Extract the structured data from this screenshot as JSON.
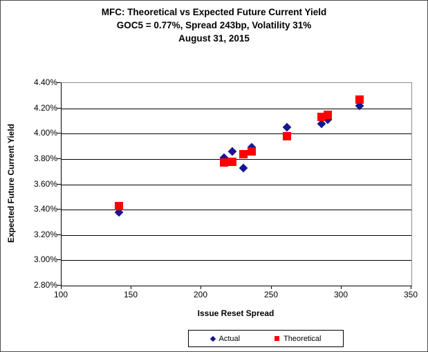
{
  "chart_data": {
    "type": "scatter",
    "title": "MFC: Theoretical vs Expected Future Current Yield",
    "subtitle": "GOC5 = 0.77%, Spread 243bp, Volatility 31%",
    "date_line": "August 31, 2015",
    "xlabel": "Issue Reset Spread",
    "ylabel": "Expected Future Current Yield",
    "xlim": [
      100,
      350
    ],
    "ylim": [
      2.8,
      4.4
    ],
    "x_tick_values": [
      100,
      150,
      200,
      250,
      300,
      350
    ],
    "x_tick_labels": [
      "100",
      "150",
      "200",
      "250",
      "300",
      "350"
    ],
    "y_tick_values": [
      4.4,
      4.2,
      4.0,
      3.8,
      3.6,
      3.4,
      3.2,
      3.0,
      2.8
    ],
    "y_tick_labels": [
      "4.40%",
      "4.20%",
      "4.00%",
      "3.80%",
      "3.60%",
      "3.40%",
      "3.20%",
      "3.00%",
      "2.80%"
    ],
    "grid": true,
    "legend_position": "bottom",
    "series": [
      {
        "name": "Actual",
        "marker": "diamond",
        "color": "#16168e",
        "points": [
          [
            141,
            3.38
          ],
          [
            216,
            3.81
          ],
          [
            222,
            3.86
          ],
          [
            230,
            3.73
          ],
          [
            236,
            3.89
          ],
          [
            261,
            4.05
          ],
          [
            286,
            4.08
          ],
          [
            290,
            4.11
          ],
          [
            313,
            4.22
          ]
        ]
      },
      {
        "name": "Theoretical",
        "marker": "square",
        "color": "#fe0000",
        "points": [
          [
            141,
            3.43
          ],
          [
            216,
            3.77
          ],
          [
            222,
            3.78
          ],
          [
            230,
            3.84
          ],
          [
            236,
            3.86
          ],
          [
            261,
            3.98
          ],
          [
            286,
            4.13
          ],
          [
            290,
            4.15
          ],
          [
            313,
            4.27
          ]
        ]
      }
    ]
  }
}
